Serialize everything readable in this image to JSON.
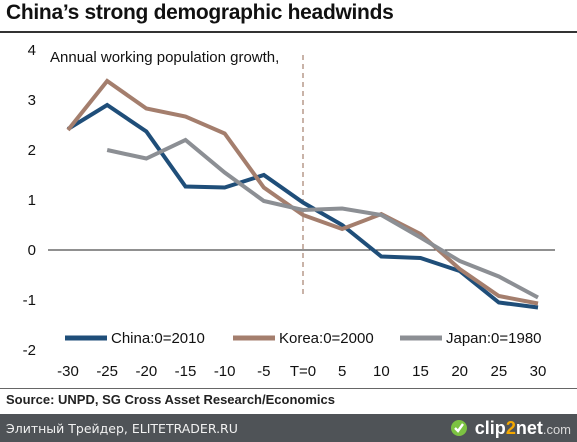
{
  "title": "China’s strong demographic headwinds",
  "source": "Source: UNPD, SG Cross Asset Research/Economics",
  "footer": {
    "site": "Элитный Трейдер, ELITETRADER.RU",
    "brand_prefix": "clip",
    "brand_two": "2",
    "brand_net": "net",
    "brand_com": ".com"
  },
  "chart_data": {
    "type": "line",
    "annotation": "Annual working population growth,",
    "x": [
      -30,
      -25,
      -20,
      -15,
      -10,
      -5,
      0,
      5,
      10,
      15,
      20,
      25,
      30
    ],
    "x_tick_labels": [
      "-30",
      "-25",
      "-20",
      "-15",
      "-10",
      "-5",
      "T=0",
      "5",
      "10",
      "15",
      "20",
      "25",
      "30"
    ],
    "ylim": [
      -2,
      4
    ],
    "y_ticks": [
      -2,
      -1,
      0,
      1,
      2,
      3,
      4
    ],
    "y_tick_labels": [
      "-2",
      "-1",
      "0",
      "1",
      "2",
      "3",
      "4"
    ],
    "vline_at": 0,
    "legend_position": "bottom",
    "series": [
      {
        "name": "China:0=2010",
        "color": "#1f4e79",
        "values": [
          2.42,
          2.9,
          2.37,
          1.27,
          1.25,
          1.5,
          0.95,
          0.5,
          -0.13,
          -0.16,
          -0.42,
          -1.05,
          -1.15
        ]
      },
      {
        "name": "Korea:0=2000",
        "color": "#a47e6d",
        "values": [
          2.4,
          3.38,
          2.83,
          2.67,
          2.33,
          1.25,
          0.7,
          0.42,
          0.72,
          0.32,
          -0.38,
          -0.92,
          -1.07
        ]
      },
      {
        "name": "Japan:0=1980",
        "color": "#8c8f94",
        "values": [
          null,
          2.0,
          1.83,
          2.2,
          1.55,
          0.98,
          0.8,
          0.83,
          0.7,
          0.25,
          -0.22,
          -0.53,
          -0.95
        ]
      }
    ]
  }
}
